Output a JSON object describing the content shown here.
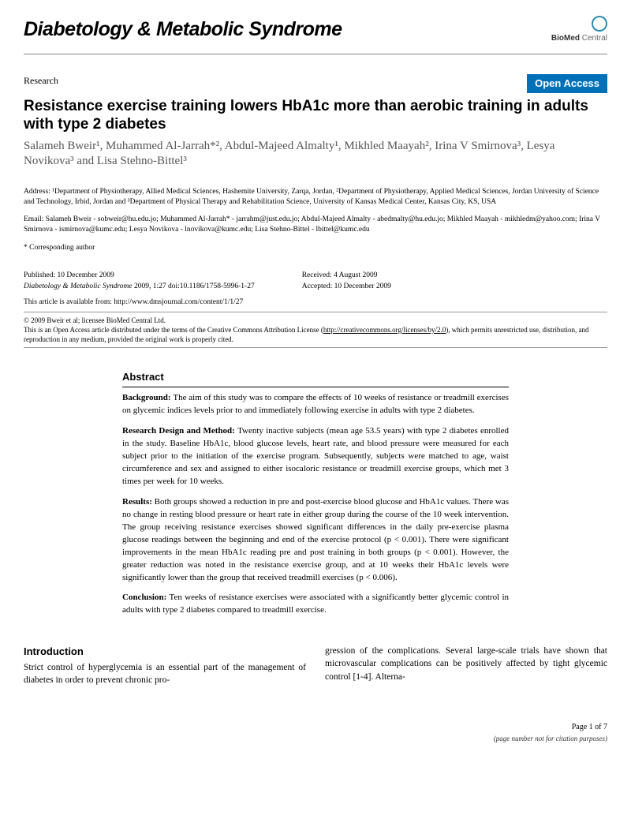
{
  "journal": "Diabetology & Metabolic Syndrome",
  "publisher": {
    "prefix": "BioMed",
    "suffix": " Central"
  },
  "article_type": "Research",
  "open_access_badge": "Open Access",
  "title": "Resistance exercise training lowers HbA1c more than aerobic training in adults with type 2 diabetes",
  "authors_html": "Salameh Bweir¹, Muhammed Al-Jarrah*², Abdul-Majeed Almalty¹, Mikhled Maayah², Irina V Smirnova³, Lesya Novikova³ and Lisa Stehno-Bittel³",
  "affiliations": "Address: ¹Department of Physiotherapy, Allied Medical Sciences, Hashemite University, Zarqa, Jordan, ²Department of Physiotherapy, Applied Medical Sciences, Jordan University of Science and Technology, Irbid, Jordan and ³Department of Physical Therapy and Rehabilitation Science, University of Kansas Medical Center, Kansas City, KS, USA",
  "emails": "Email: Salameh Bweir - sobweir@hu.edu.jo; Muhammed Al-Jarrah* - jarrahm@just.edu.jo; Abdul-Majeed Almalty - abedmalty@hu.edu.jo; Mikhled Maayah - mikhledm@yahoo.com; Irina V Smirnova - ismirnova@kumc.edu; Lesya Novikova - lnovikova@kumc.edu; Lisa Stehno-Bittel - lbittel@kumc.edu",
  "corresponding": "* Corresponding author",
  "published": "Published: 10 December 2009",
  "citation_journal": "Diabetology & Metabolic Syndrome",
  "citation_rest": " 2009, 1:27   doi:10.1186/1758-5996-1-27",
  "received": "Received: 4 August 2009",
  "accepted": "Accepted: 10 December 2009",
  "availability_text": "This article is available from: http://www.dmsjournal.com/content/1/1/27",
  "copyright": "© 2009 Bweir et al; licensee BioMed Central Ltd.",
  "license_text_1": "This is an Open Access article distributed under the terms of the Creative Commons Attribution License (",
  "license_link": "http://creativecommons.org/licenses/by/2.0",
  "license_text_2": "), which permits unrestricted use, distribution, and reproduction in any medium, provided the original work is properly cited.",
  "abstract": {
    "heading": "Abstract",
    "background_label": "Background: ",
    "background": "The aim of this study was to compare the effects of 10 weeks of resistance or treadmill exercises on glycemic indices levels prior to and immediately following exercise in adults with type 2 diabetes.",
    "methods_label": "Research Design and Method: ",
    "methods": "Twenty inactive subjects (mean age 53.5 years) with type 2 diabetes enrolled in the study. Baseline HbA1c, blood glucose levels, heart rate, and blood pressure were measured for each subject prior to the initiation of the exercise program. Subsequently, subjects were matched to age, waist circumference and sex and assigned to either isocaloric resistance or treadmill exercise groups, which met 3 times per week for 10 weeks.",
    "results_label": "Results: ",
    "results": "Both groups showed a reduction in pre and post-exercise blood glucose and HbA1c values. There was no change in resting blood pressure or heart rate in either group during the course of the 10 week intervention. The group receiving resistance exercises showed significant differences in the daily pre-exercise plasma glucose readings between the beginning and end of the exercise protocol (p < 0.001). There were significant improvements in the mean HbA1c reading pre and post training in both groups (p < 0.001). However, the greater reduction was noted in the resistance exercise group, and at 10 weeks their HbA1c levels were significantly lower than the group that received treadmill exercises (p < 0.006).",
    "conclusion_label": "Conclusion: ",
    "conclusion": "Ten weeks of resistance exercises were associated with a significantly better glycemic control in adults with type 2 diabetes compared to treadmill exercise."
  },
  "intro": {
    "heading": "Introduction",
    "col1": "Strict control of hyperglycemia is an essential part of the management of diabetes in order to prevent chronic pro-",
    "col2": "gression of the complications. Several large-scale trials have shown that microvascular complications can be positively affected by tight glycemic control [1-4]. Alterna-"
  },
  "footer": {
    "page": "Page 1 of 7",
    "note": "(page number not for citation purposes)"
  }
}
